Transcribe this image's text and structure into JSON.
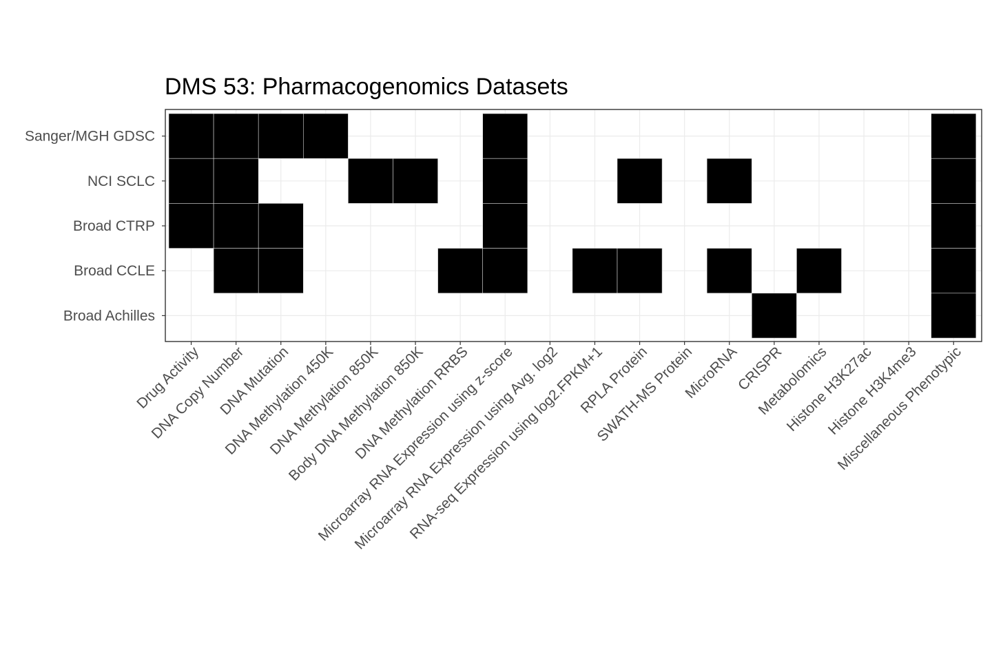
{
  "chart_data": {
    "type": "heatmap",
    "title": "DMS 53: Pharmacogenomics Datasets",
    "xlabel": "",
    "ylabel": "",
    "x_categories": [
      "Drug Activity",
      "DNA Copy Number",
      "DNA Mutation",
      "DNA Methylation 450K",
      "DNA Methylation 850K",
      "Body DNA Methylation 850K",
      "DNA Methylation RRBS",
      "Microarray RNA Expression using z-score",
      "Microarray RNA Expression using Avg. log2",
      "RNA-seq Expression using log2.FPKM+1",
      "RPLA Protein",
      "SWATH-MS Protein",
      "MicroRNA",
      "CRISPR",
      "Metabolomics",
      "Histone H3K27ac",
      "Histone H3K4me3",
      "Miscellaneous Phenotypic"
    ],
    "y_categories": [
      "Sanger/MGH GDSC",
      "NCI SCLC",
      "Broad CTRP",
      "Broad CCLE",
      "Broad Achilles"
    ],
    "values": [
      [
        1,
        1,
        1,
        1,
        0,
        0,
        0,
        1,
        0,
        0,
        0,
        0,
        0,
        0,
        0,
        0,
        0,
        1
      ],
      [
        1,
        1,
        0,
        0,
        1,
        1,
        0,
        1,
        0,
        0,
        1,
        0,
        1,
        0,
        0,
        0,
        0,
        1
      ],
      [
        1,
        1,
        1,
        0,
        0,
        0,
        0,
        1,
        0,
        0,
        0,
        0,
        0,
        0,
        0,
        0,
        0,
        1
      ],
      [
        0,
        1,
        1,
        0,
        0,
        0,
        1,
        1,
        0,
        1,
        1,
        0,
        1,
        0,
        1,
        0,
        0,
        1
      ],
      [
        0,
        0,
        0,
        0,
        0,
        0,
        0,
        0,
        0,
        0,
        0,
        0,
        0,
        1,
        0,
        0,
        0,
        1
      ]
    ],
    "fill_color": "#000000",
    "empty_color": "#ffffff",
    "gridline_color": "#ebebeb",
    "grid": true,
    "legend": "none"
  }
}
